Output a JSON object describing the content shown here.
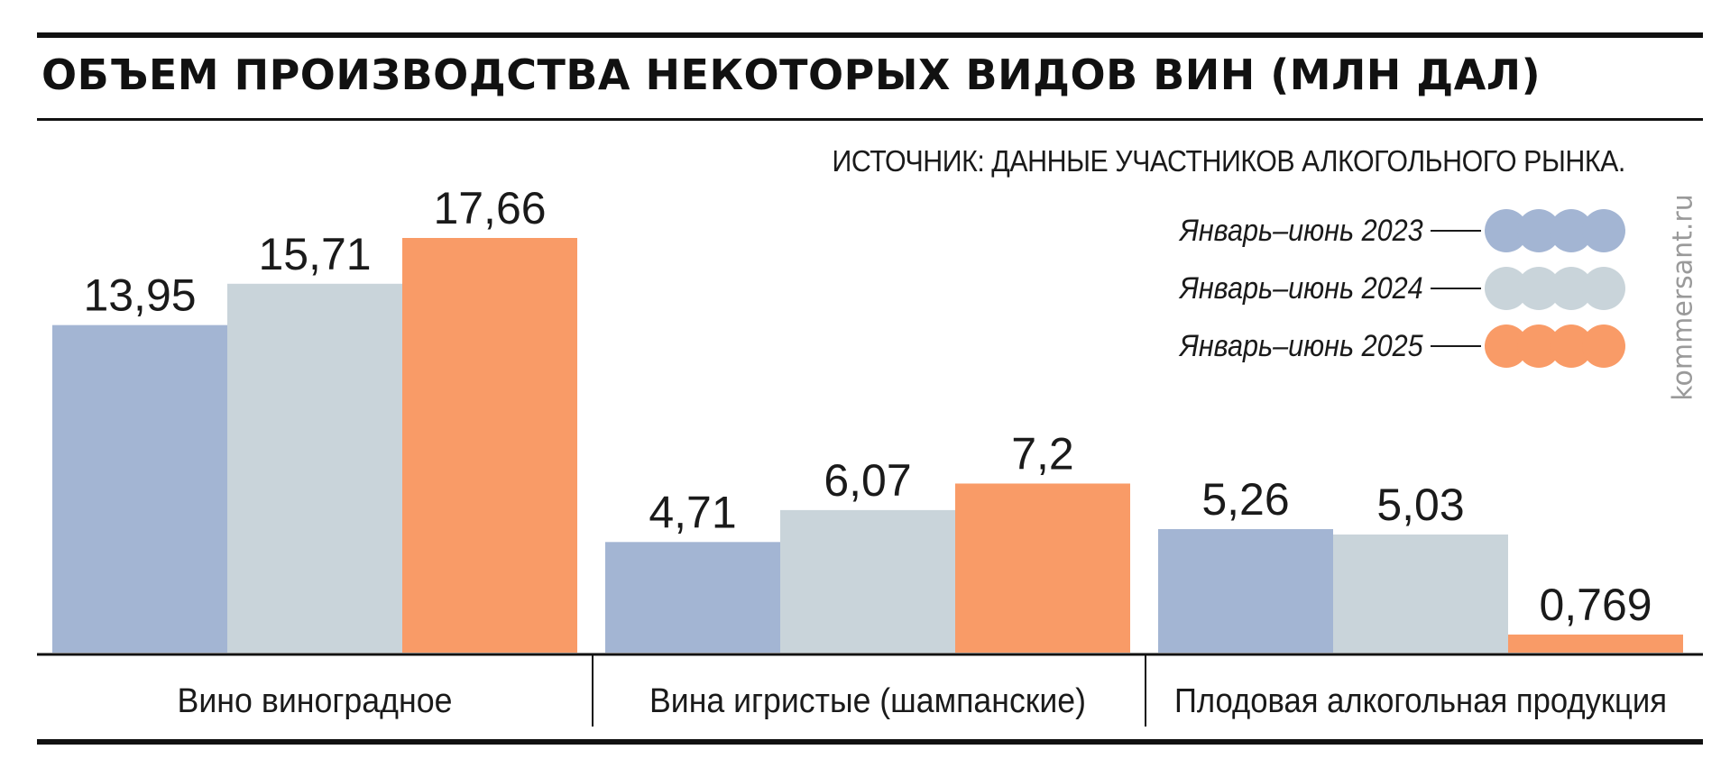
{
  "header": {
    "title": "ОБЪЕМ ПРОИЗВОДСТВА НЕКОТОРЫХ ВИДОВ ВИН (МЛН ДАЛ)",
    "source": "ИСТОЧНИК: ДАННЫЕ УЧАСТНИКОВ АЛКОГОЛЬНОГО РЫНКА.",
    "watermark": "kommersant.ru"
  },
  "chart_data": {
    "type": "bar",
    "title": "ОБЪЕМ ПРОИЗВОДСТВА НЕКОТОРЫХ ВИДОВ ВИН (МЛН ДАЛ)",
    "categories": [
      "Вино виноградное",
      "Вина игристые (шампанские)",
      "Плодовая алкогольная продукция"
    ],
    "series": [
      {
        "name": "Январь–июнь 2023",
        "color": "#a3b5d3",
        "values": [
          13.95,
          4.71,
          5.26
        ],
        "labels": [
          "13,95",
          "4,71",
          "5,26"
        ]
      },
      {
        "name": "Январь–июнь 2024",
        "color": "#c9d4da",
        "values": [
          15.71,
          6.07,
          5.03
        ],
        "labels": [
          "15,71",
          "6,07",
          "5,03"
        ]
      },
      {
        "name": "Январь–июнь 2025",
        "color": "#f99b67",
        "values": [
          17.66,
          7.2,
          0.769
        ],
        "labels": [
          "17,66",
          "7,2",
          "0,769"
        ]
      }
    ],
    "ylim": [
      0,
      17.66
    ],
    "grid": false,
    "legend_placement": "top-right",
    "data_labels": true
  }
}
